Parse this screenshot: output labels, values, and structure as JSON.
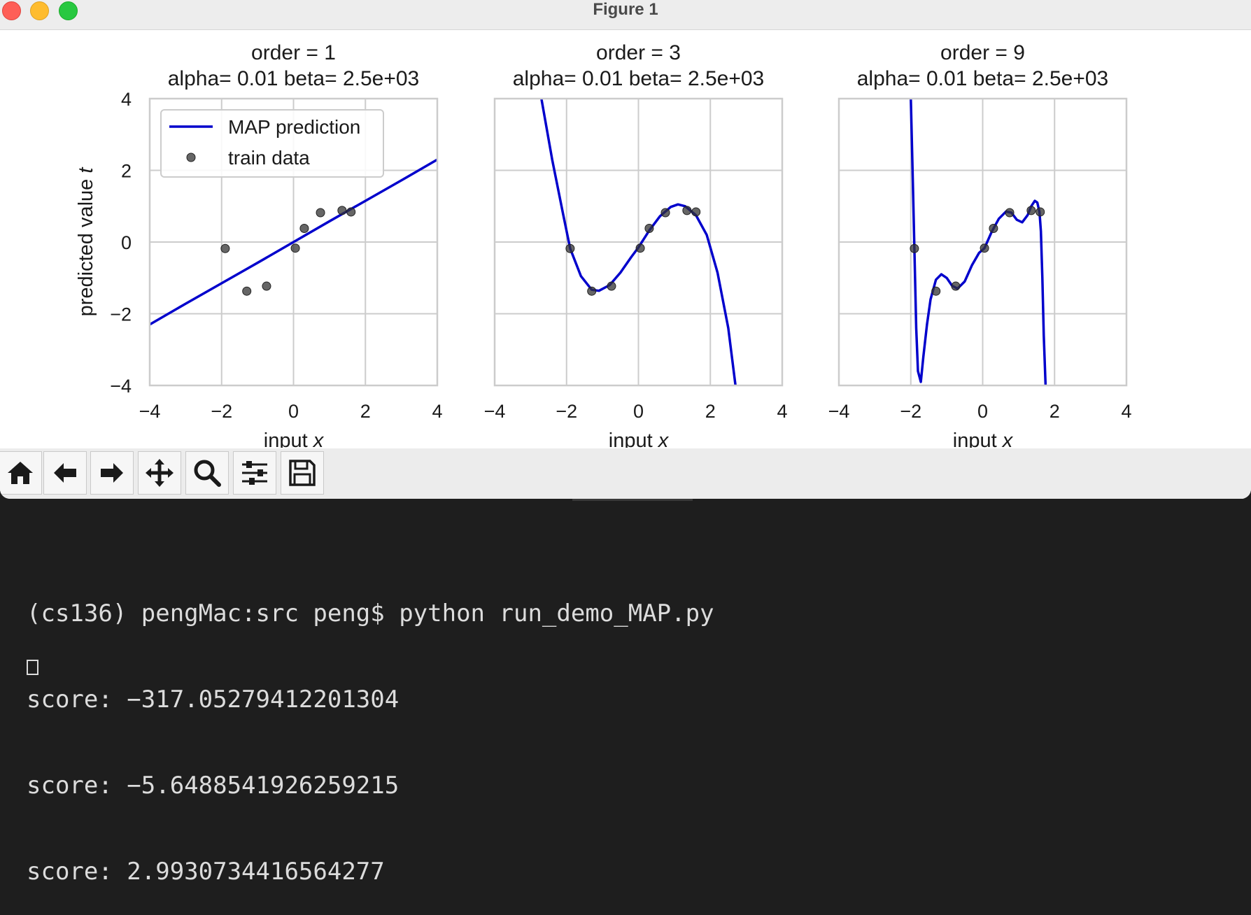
{
  "window": {
    "title": "Figure 1"
  },
  "figure": {
    "ylabel_prefix": "predicted value ",
    "ylabel_var": "t",
    "xlabel_prefix": "input ",
    "xlabel_var": "x",
    "yticks": [
      "4",
      "2",
      "0",
      "−2",
      "−4"
    ],
    "xticks": [
      "−4",
      "−2",
      "0",
      "2",
      "4"
    ],
    "legend": {
      "line_label": "MAP prediction",
      "points_label": "train data"
    },
    "colors": {
      "line": "#0000cc",
      "points": "#333333",
      "grid": "#cccccc",
      "axes": "#cccccc"
    }
  },
  "chart_data": [
    {
      "type": "line",
      "title": "order = 1",
      "subtitle": "alpha= 0.01  beta= 2.5e+03",
      "xlabel": "input x",
      "ylabel": "predicted value t",
      "xlim": [
        -4,
        4
      ],
      "ylim": [
        -4,
        4
      ],
      "grid": true,
      "legend": "top-left",
      "series": [
        {
          "name": "MAP prediction",
          "x": [
            -4,
            -3,
            -2,
            -1,
            0,
            1,
            2,
            3,
            4
          ],
          "y": [
            -2.3,
            -1.72,
            -1.15,
            -0.58,
            0.0,
            0.58,
            1.15,
            1.72,
            2.3
          ]
        },
        {
          "name": "train data",
          "x": [
            -1.9,
            -1.3,
            -0.75,
            0.05,
            0.3,
            0.75,
            1.35,
            1.6
          ],
          "y": [
            -0.18,
            -1.37,
            -1.23,
            -0.17,
            0.38,
            0.82,
            0.88,
            0.84
          ]
        }
      ]
    },
    {
      "type": "line",
      "title": "order = 3",
      "subtitle": "alpha= 0.01  beta= 2.5e+03",
      "xlabel": "input x",
      "xlim": [
        -4,
        4
      ],
      "ylim": [
        -4,
        4
      ],
      "grid": true,
      "series": [
        {
          "name": "MAP prediction",
          "x": [
            -2.7,
            -2.4,
            -2.1,
            -1.9,
            -1.6,
            -1.3,
            -1.1,
            -0.8,
            -0.5,
            -0.2,
            0.0,
            0.3,
            0.6,
            0.9,
            1.1,
            1.3,
            1.6,
            1.9,
            2.2,
            2.5,
            2.7
          ],
          "y": [
            4.0,
            2.3,
            0.8,
            -0.18,
            -0.95,
            -1.33,
            -1.36,
            -1.2,
            -0.85,
            -0.42,
            -0.15,
            0.32,
            0.72,
            0.98,
            1.05,
            1.0,
            0.75,
            0.2,
            -0.85,
            -2.4,
            -4.0
          ]
        },
        {
          "name": "train data",
          "x": [
            -1.9,
            -1.3,
            -0.75,
            0.05,
            0.3,
            0.75,
            1.35,
            1.6
          ],
          "y": [
            -0.18,
            -1.37,
            -1.23,
            -0.17,
            0.38,
            0.82,
            0.88,
            0.84
          ]
        }
      ]
    },
    {
      "type": "line",
      "title": "order = 9",
      "subtitle": "alpha= 0.01  beta= 2.5e+03",
      "xlabel": "input x",
      "xlim": [
        -4,
        4
      ],
      "ylim": [
        -4,
        4
      ],
      "grid": true,
      "series": [
        {
          "name": "MAP prediction",
          "x": [
            -2.0,
            -1.95,
            -1.9,
            -1.85,
            -1.8,
            -1.72,
            -1.65,
            -1.55,
            -1.45,
            -1.3,
            -1.15,
            -1.0,
            -0.85,
            -0.7,
            -0.5,
            -0.3,
            -0.1,
            0.05,
            0.25,
            0.45,
            0.65,
            0.8,
            0.95,
            1.1,
            1.25,
            1.35,
            1.45,
            1.52,
            1.58,
            1.62,
            1.66,
            1.7,
            1.75
          ],
          "y": [
            4.0,
            2.0,
            -0.18,
            -2.4,
            -3.6,
            -3.9,
            -3.2,
            -2.3,
            -1.6,
            -1.05,
            -0.9,
            -1.0,
            -1.22,
            -1.3,
            -1.1,
            -0.65,
            -0.3,
            -0.17,
            0.28,
            0.65,
            0.85,
            0.82,
            0.62,
            0.55,
            0.75,
            1.0,
            1.15,
            1.1,
            0.84,
            0.3,
            -1.0,
            -2.6,
            -4.0
          ]
        },
        {
          "name": "train data",
          "x": [
            -1.9,
            -1.3,
            -0.75,
            0.05,
            0.3,
            0.75,
            1.35,
            1.6
          ],
          "y": [
            -0.18,
            -1.37,
            -1.23,
            -0.17,
            0.38,
            0.82,
            0.88,
            0.84
          ]
        }
      ]
    }
  ],
  "toolbar": {
    "buttons": [
      {
        "name": "home-icon",
        "label": "Home"
      },
      {
        "name": "back-arrow-icon",
        "label": "Back"
      },
      {
        "name": "forward-arrow-icon",
        "label": "Forward"
      },
      {
        "name": "pan-icon",
        "label": "Pan"
      },
      {
        "name": "zoom-icon",
        "label": "Zoom"
      },
      {
        "name": "subplots-icon",
        "label": "Configure subplots"
      },
      {
        "name": "save-icon",
        "label": "Save"
      }
    ]
  },
  "terminal": {
    "lines": [
      "(cs136) pengMac:src peng$ python run_demo_MAP.py",
      "score: −317.05279412201304",
      "score: −5.6488541926259215",
      "score: 2.9930734416564277"
    ]
  }
}
